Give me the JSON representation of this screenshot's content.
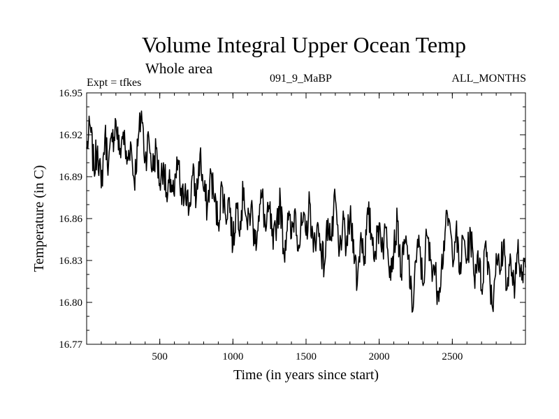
{
  "header": {
    "title": "Volume Integral Upper Ocean Temp",
    "subtitle": "Whole area",
    "experiment": "Expt = tfkes",
    "case": "091_9_MaBP",
    "period": "ALL_MONTHS"
  },
  "chart_data": {
    "type": "line",
    "xlabel": "Time (in years since start)",
    "ylabel": "Temperature (in C)",
    "xlim": [
      0,
      3000
    ],
    "ylim": [
      16.77,
      16.95
    ],
    "xticks": [
      500,
      1000,
      1500,
      2000,
      2500
    ],
    "xtick_labels": [
      "500",
      "1000",
      "1500",
      "2000",
      "2500"
    ],
    "yticks": [
      16.77,
      16.8,
      16.83,
      16.86,
      16.89,
      16.92,
      16.95
    ],
    "ytick_labels": [
      "16.77",
      "16.80",
      "16.83",
      "16.86",
      "16.89",
      "16.92",
      "16.95"
    ],
    "grid": false,
    "series": [
      {
        "x": [
          0,
          25,
          50,
          75,
          100,
          125,
          150,
          175,
          200,
          225,
          250,
          275,
          300,
          325,
          350,
          375,
          400,
          425,
          450,
          475,
          500,
          525,
          550,
          575,
          600,
          625,
          650,
          675,
          700,
          725,
          750,
          775,
          800,
          825,
          850,
          875,
          900,
          925,
          950,
          975,
          1000,
          1025,
          1050,
          1075,
          1100,
          1125,
          1150,
          1175,
          1200,
          1225,
          1250,
          1275,
          1300,
          1325,
          1350,
          1375,
          1400,
          1425,
          1450,
          1475,
          1500,
          1525,
          1550,
          1575,
          1600,
          1625,
          1650,
          1675,
          1700,
          1725,
          1750,
          1775,
          1800,
          1825,
          1850,
          1875,
          1900,
          1925,
          1950,
          1975,
          2000,
          2025,
          2050,
          2075,
          2100,
          2125,
          2150,
          2175,
          2200,
          2225,
          2250,
          2275,
          2300,
          2325,
          2350,
          2375,
          2400,
          2425,
          2450,
          2475,
          2500,
          2525,
          2550,
          2575,
          2600,
          2625,
          2650,
          2675,
          2700,
          2725,
          2750,
          2775,
          2800,
          2825,
          2850,
          2875,
          2900,
          2925,
          2950,
          2975,
          3000
        ],
        "values": [
          16.91,
          16.926,
          16.895,
          16.912,
          16.882,
          16.92,
          16.9,
          16.915,
          16.93,
          16.906,
          16.922,
          16.899,
          16.915,
          16.887,
          16.912,
          16.937,
          16.902,
          16.918,
          16.895,
          16.91,
          16.885,
          16.9,
          16.872,
          16.888,
          16.876,
          16.902,
          16.87,
          16.885,
          16.866,
          16.891,
          16.875,
          16.906,
          16.88,
          16.868,
          16.893,
          16.872,
          16.857,
          16.884,
          16.862,
          16.875,
          16.84,
          16.871,
          16.858,
          16.882,
          16.852,
          16.87,
          16.842,
          16.862,
          16.876,
          16.851,
          16.867,
          16.838,
          16.86,
          16.872,
          16.834,
          16.864,
          16.846,
          16.867,
          16.841,
          16.857,
          16.848,
          16.872,
          16.836,
          16.855,
          16.842,
          16.826,
          16.86,
          16.844,
          16.874,
          16.833,
          16.855,
          16.84,
          16.86,
          16.845,
          16.813,
          16.85,
          16.833,
          16.863,
          16.848,
          16.836,
          16.857,
          16.84,
          16.854,
          16.826,
          16.838,
          16.858,
          16.82,
          16.842,
          16.833,
          16.793,
          16.83,
          16.84,
          16.812,
          16.848,
          16.83,
          16.826,
          16.808,
          16.824,
          16.85,
          16.86,
          16.835,
          16.852,
          16.82,
          16.846,
          16.831,
          16.85,
          16.818,
          16.837,
          16.809,
          16.842,
          16.827,
          16.796,
          16.835,
          16.82,
          16.844,
          16.81,
          16.83,
          16.803,
          16.845,
          16.816,
          16.825
        ]
      }
    ]
  }
}
